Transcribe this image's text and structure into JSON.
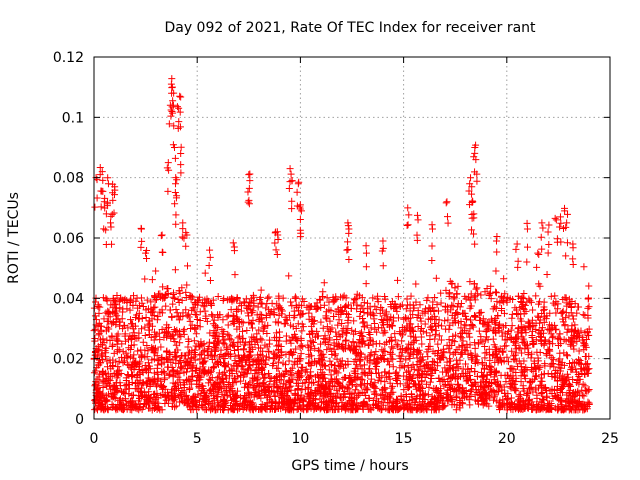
{
  "chart_data": {
    "type": "scatter",
    "title": "Day 092 of 2021, Rate Of TEC Index for receiver rant",
    "xlabel": "GPS time / hours",
    "ylabel": "ROTI / TECUs",
    "xlim": [
      0,
      25
    ],
    "ylim": [
      0,
      0.12
    ],
    "x_ticks": [
      "0",
      "5",
      "10",
      "15",
      "20",
      "25"
    ],
    "y_ticks": [
      "0",
      "0.02",
      "0.04",
      "0.06",
      "0.08",
      "0.1",
      "0.12"
    ],
    "grid": true,
    "marker": "plus",
    "series_color": "#ff0000",
    "point_density": "dense cloud of several thousand points between 0.002 and 0.045 TECU/s over 0-24 h",
    "outliers": [
      {
        "x": 0.1,
        "y": 0.08
      },
      {
        "x": 0.3,
        "y": 0.081
      },
      {
        "x": 0.4,
        "y": 0.082
      },
      {
        "x": 0.5,
        "y": 0.072
      },
      {
        "x": 0.6,
        "y": 0.068
      },
      {
        "x": 0.7,
        "y": 0.078
      },
      {
        "x": 0.8,
        "y": 0.065
      },
      {
        "x": 0.9,
        "y": 0.075
      },
      {
        "x": 1.0,
        "y": 0.077
      },
      {
        "x": 2.3,
        "y": 0.063
      },
      {
        "x": 2.5,
        "y": 0.055
      },
      {
        "x": 3.3,
        "y": 0.061
      },
      {
        "x": 3.6,
        "y": 0.085
      },
      {
        "x": 3.7,
        "y": 0.104
      },
      {
        "x": 3.75,
        "y": 0.111
      },
      {
        "x": 3.8,
        "y": 0.11
      },
      {
        "x": 3.85,
        "y": 0.104
      },
      {
        "x": 3.9,
        "y": 0.09
      },
      {
        "x": 3.95,
        "y": 0.078
      },
      {
        "x": 4.0,
        "y": 0.074
      },
      {
        "x": 4.1,
        "y": 0.103
      },
      {
        "x": 4.15,
        "y": 0.107
      },
      {
        "x": 4.2,
        "y": 0.088
      },
      {
        "x": 4.3,
        "y": 0.065
      },
      {
        "x": 4.5,
        "y": 0.061
      },
      {
        "x": 5.6,
        "y": 0.056
      },
      {
        "x": 6.8,
        "y": 0.057
      },
      {
        "x": 7.5,
        "y": 0.081
      },
      {
        "x": 7.55,
        "y": 0.079
      },
      {
        "x": 8.8,
        "y": 0.062
      },
      {
        "x": 8.9,
        "y": 0.061
      },
      {
        "x": 9.5,
        "y": 0.083
      },
      {
        "x": 9.6,
        "y": 0.079
      },
      {
        "x": 9.9,
        "y": 0.078
      },
      {
        "x": 10.0,
        "y": 0.071
      },
      {
        "x": 10.05,
        "y": 0.069
      },
      {
        "x": 12.3,
        "y": 0.065
      },
      {
        "x": 12.35,
        "y": 0.063
      },
      {
        "x": 13.2,
        "y": 0.055
      },
      {
        "x": 14.0,
        "y": 0.059
      },
      {
        "x": 15.2,
        "y": 0.07
      },
      {
        "x": 15.7,
        "y": 0.066
      },
      {
        "x": 16.4,
        "y": 0.063
      },
      {
        "x": 17.1,
        "y": 0.072
      },
      {
        "x": 18.2,
        "y": 0.078
      },
      {
        "x": 18.3,
        "y": 0.077
      },
      {
        "x": 18.35,
        "y": 0.072
      },
      {
        "x": 18.4,
        "y": 0.068
      },
      {
        "x": 18.45,
        "y": 0.09
      },
      {
        "x": 18.5,
        "y": 0.086
      },
      {
        "x": 19.5,
        "y": 0.059
      },
      {
        "x": 20.5,
        "y": 0.058
      },
      {
        "x": 21.0,
        "y": 0.063
      },
      {
        "x": 21.5,
        "y": 0.055
      },
      {
        "x": 21.7,
        "y": 0.065
      },
      {
        "x": 22.0,
        "y": 0.062
      },
      {
        "x": 22.4,
        "y": 0.066
      },
      {
        "x": 22.6,
        "y": 0.067
      },
      {
        "x": 22.8,
        "y": 0.069
      },
      {
        "x": 22.9,
        "y": 0.065
      },
      {
        "x": 23.2,
        "y": 0.058
      }
    ]
  }
}
